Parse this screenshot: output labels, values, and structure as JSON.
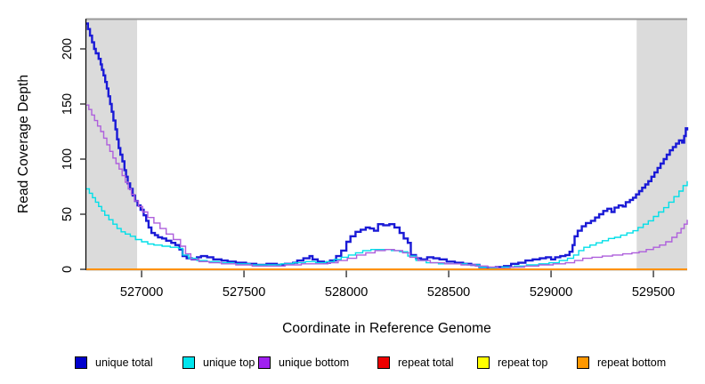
{
  "figure": {
    "background": "#ffffff",
    "frame_top_line_color": "#9a9a9a",
    "axis_color": "#000000",
    "tick_color": "#333333",
    "highlight_color": "#dbdbdb"
  },
  "chart_data": {
    "type": "line",
    "title": "",
    "xlabel": "Coordinate in Reference Genome",
    "ylabel": "Read Coverage Depth",
    "xlim": [
      526730,
      529665
    ],
    "ylim": [
      0,
      227
    ],
    "x_ticks": [
      527000,
      527500,
      528000,
      528500,
      529000,
      529500
    ],
    "y_ticks": [
      0,
      50,
      100,
      150,
      200
    ],
    "grid": false,
    "legend_position": "bottom",
    "highlight_regions": [
      {
        "name": "left-flank-repeat-region",
        "x0": 526730,
        "x1": 526978
      },
      {
        "name": "right-flank-repeat-region",
        "x0": 529418,
        "x1": 529665
      }
    ],
    "series": [
      {
        "name": "unique total",
        "color": "#1a1ad6",
        "swatch": "#0000cc",
        "width": 2.4,
        "points": [
          [
            526730,
            223
          ],
          [
            526738,
            218
          ],
          [
            526748,
            212
          ],
          [
            526758,
            206
          ],
          [
            526768,
            200
          ],
          [
            526776,
            196
          ],
          [
            526790,
            191
          ],
          [
            526800,
            186
          ],
          [
            526806,
            181
          ],
          [
            526814,
            176
          ],
          [
            526822,
            170
          ],
          [
            526830,
            164
          ],
          [
            526838,
            157
          ],
          [
            526846,
            150
          ],
          [
            526854,
            143
          ],
          [
            526862,
            135
          ],
          [
            526872,
            127
          ],
          [
            526880,
            118
          ],
          [
            526888,
            110
          ],
          [
            526896,
            104
          ],
          [
            526906,
            98
          ],
          [
            526916,
            90
          ],
          [
            526924,
            84
          ],
          [
            526932,
            78
          ],
          [
            526944,
            73
          ],
          [
            526956,
            67
          ],
          [
            526968,
            62
          ],
          [
            526980,
            58
          ],
          [
            526995,
            54
          ],
          [
            527010,
            49
          ],
          [
            527022,
            44
          ],
          [
            527034,
            38
          ],
          [
            527048,
            33
          ],
          [
            527065,
            31
          ],
          [
            527080,
            29
          ],
          [
            527100,
            28
          ],
          [
            527120,
            26
          ],
          [
            527145,
            24
          ],
          [
            527165,
            22
          ],
          [
            527185,
            18
          ],
          [
            527200,
            12
          ],
          [
            527220,
            10
          ],
          [
            527245,
            9
          ],
          [
            527270,
            11
          ],
          [
            527290,
            12
          ],
          [
            527320,
            11
          ],
          [
            527350,
            9
          ],
          [
            527390,
            8
          ],
          [
            527420,
            7
          ],
          [
            527460,
            6
          ],
          [
            527510,
            5
          ],
          [
            527560,
            4
          ],
          [
            527610,
            5
          ],
          [
            527660,
            4
          ],
          [
            527700,
            5
          ],
          [
            527740,
            6
          ],
          [
            527760,
            8
          ],
          [
            527790,
            10
          ],
          [
            527820,
            12
          ],
          [
            527835,
            9
          ],
          [
            527860,
            7
          ],
          [
            527890,
            6
          ],
          [
            527920,
            8
          ],
          [
            527950,
            12
          ],
          [
            527975,
            17
          ],
          [
            528000,
            25
          ],
          [
            528020,
            30
          ],
          [
            528045,
            34
          ],
          [
            528070,
            36
          ],
          [
            528095,
            38
          ],
          [
            528115,
            37
          ],
          [
            528135,
            35
          ],
          [
            528155,
            41
          ],
          [
            528180,
            40
          ],
          [
            528210,
            41
          ],
          [
            528235,
            38
          ],
          [
            528260,
            33
          ],
          [
            528280,
            28
          ],
          [
            528300,
            24
          ],
          [
            528315,
            13
          ],
          [
            528340,
            10
          ],
          [
            528365,
            9
          ],
          [
            528395,
            11
          ],
          [
            528425,
            10
          ],
          [
            528455,
            9
          ],
          [
            528490,
            7
          ],
          [
            528530,
            6
          ],
          [
            528570,
            5
          ],
          [
            528610,
            4
          ],
          [
            528650,
            2
          ],
          [
            528690,
            1
          ],
          [
            528730,
            2
          ],
          [
            528770,
            3
          ],
          [
            528805,
            5
          ],
          [
            528840,
            6
          ],
          [
            528875,
            8
          ],
          [
            528910,
            9
          ],
          [
            528945,
            10
          ],
          [
            528975,
            11
          ],
          [
            529000,
            9
          ],
          [
            529020,
            11
          ],
          [
            529045,
            12
          ],
          [
            529070,
            13
          ],
          [
            529090,
            16
          ],
          [
            529105,
            22
          ],
          [
            529115,
            30
          ],
          [
            529130,
            35
          ],
          [
            529150,
            39
          ],
          [
            529170,
            42
          ],
          [
            529195,
            44
          ],
          [
            529215,
            47
          ],
          [
            529235,
            50
          ],
          [
            529255,
            53
          ],
          [
            529275,
            55
          ],
          [
            529295,
            52
          ],
          [
            529310,
            56
          ],
          [
            529330,
            58
          ],
          [
            529350,
            57
          ],
          [
            529365,
            61
          ],
          [
            529385,
            63
          ],
          [
            529400,
            65
          ],
          [
            529415,
            68
          ],
          [
            529430,
            71
          ],
          [
            529445,
            74
          ],
          [
            529460,
            77
          ],
          [
            529475,
            80
          ],
          [
            529490,
            84
          ],
          [
            529505,
            88
          ],
          [
            529520,
            92
          ],
          [
            529535,
            96
          ],
          [
            529550,
            100
          ],
          [
            529565,
            104
          ],
          [
            529580,
            108
          ],
          [
            529595,
            111
          ],
          [
            529610,
            114
          ],
          [
            529625,
            117
          ],
          [
            529640,
            115
          ],
          [
            529650,
            121
          ],
          [
            529658,
            128
          ],
          [
            529665,
            126
          ]
        ]
      },
      {
        "name": "unique top",
        "color": "#00dfe8",
        "swatch": "#00e5ee",
        "width": 1.4,
        "points": [
          [
            526730,
            73
          ],
          [
            526745,
            69
          ],
          [
            526760,
            65
          ],
          [
            526775,
            61
          ],
          [
            526790,
            57
          ],
          [
            526805,
            53
          ],
          [
            526820,
            49
          ],
          [
            526840,
            45
          ],
          [
            526860,
            41
          ],
          [
            526880,
            37
          ],
          [
            526900,
            34
          ],
          [
            526920,
            32
          ],
          [
            526945,
            30
          ],
          [
            526970,
            27
          ],
          [
            527000,
            25
          ],
          [
            527030,
            23
          ],
          [
            527060,
            22
          ],
          [
            527100,
            21
          ],
          [
            527140,
            20
          ],
          [
            527180,
            19
          ],
          [
            527200,
            13
          ],
          [
            527230,
            10
          ],
          [
            527270,
            8
          ],
          [
            527320,
            7
          ],
          [
            527380,
            6
          ],
          [
            527450,
            5
          ],
          [
            527530,
            4
          ],
          [
            527610,
            4
          ],
          [
            527680,
            5
          ],
          [
            527740,
            6
          ],
          [
            527800,
            7
          ],
          [
            527850,
            6
          ],
          [
            527900,
            7
          ],
          [
            527940,
            9
          ],
          [
            527975,
            11
          ],
          [
            528010,
            13
          ],
          [
            528045,
            15
          ],
          [
            528080,
            17
          ],
          [
            528120,
            18
          ],
          [
            528170,
            18
          ],
          [
            528220,
            17
          ],
          [
            528260,
            16
          ],
          [
            528300,
            12
          ],
          [
            528340,
            8
          ],
          [
            528390,
            6
          ],
          [
            528450,
            5
          ],
          [
            528520,
            5
          ],
          [
            528590,
            4
          ],
          [
            528650,
            2
          ],
          [
            528700,
            1
          ],
          [
            528760,
            2
          ],
          [
            528820,
            3
          ],
          [
            528880,
            4
          ],
          [
            528940,
            5
          ],
          [
            528990,
            6
          ],
          [
            529040,
            8
          ],
          [
            529080,
            10
          ],
          [
            529110,
            13
          ],
          [
            529135,
            17
          ],
          [
            529160,
            20
          ],
          [
            529190,
            22
          ],
          [
            529220,
            24
          ],
          [
            529250,
            26
          ],
          [
            529280,
            28
          ],
          [
            529310,
            29
          ],
          [
            529340,
            31
          ],
          [
            529370,
            33
          ],
          [
            529400,
            35
          ],
          [
            529425,
            38
          ],
          [
            529450,
            41
          ],
          [
            529475,
            44
          ],
          [
            529500,
            48
          ],
          [
            529525,
            52
          ],
          [
            529550,
            56
          ],
          [
            529575,
            61
          ],
          [
            529600,
            66
          ],
          [
            529625,
            71
          ],
          [
            529645,
            76
          ],
          [
            529665,
            80
          ]
        ]
      },
      {
        "name": "unique bottom",
        "color": "#ae5fdc",
        "swatch": "#a020f0",
        "width": 1.4,
        "points": [
          [
            526730,
            149
          ],
          [
            526742,
            145
          ],
          [
            526756,
            140
          ],
          [
            526770,
            135
          ],
          [
            526785,
            130
          ],
          [
            526800,
            125
          ],
          [
            526815,
            119
          ],
          [
            526830,
            113
          ],
          [
            526845,
            107
          ],
          [
            526860,
            101
          ],
          [
            526875,
            96
          ],
          [
            526890,
            91
          ],
          [
            526905,
            85
          ],
          [
            526920,
            79
          ],
          [
            526935,
            73
          ],
          [
            526950,
            68
          ],
          [
            526965,
            62
          ],
          [
            526985,
            57
          ],
          [
            527005,
            52
          ],
          [
            527030,
            47
          ],
          [
            527060,
            42
          ],
          [
            527090,
            37
          ],
          [
            527120,
            32
          ],
          [
            527155,
            27
          ],
          [
            527190,
            21
          ],
          [
            527215,
            14
          ],
          [
            527240,
            9
          ],
          [
            527280,
            7
          ],
          [
            527330,
            6
          ],
          [
            527390,
            5
          ],
          [
            527460,
            4
          ],
          [
            527540,
            3
          ],
          [
            527620,
            3
          ],
          [
            527700,
            4
          ],
          [
            527780,
            5
          ],
          [
            527850,
            5
          ],
          [
            527910,
            6
          ],
          [
            527960,
            8
          ],
          [
            528005,
            10
          ],
          [
            528050,
            13
          ],
          [
            528095,
            15
          ],
          [
            528140,
            17
          ],
          [
            528190,
            18
          ],
          [
            528235,
            17
          ],
          [
            528275,
            15
          ],
          [
            528310,
            11
          ],
          [
            528350,
            8
          ],
          [
            528410,
            6
          ],
          [
            528480,
            5
          ],
          [
            528560,
            4
          ],
          [
            528630,
            3
          ],
          [
            528690,
            2
          ],
          [
            528740,
            1
          ],
          [
            528800,
            2
          ],
          [
            528870,
            3
          ],
          [
            528940,
            4
          ],
          [
            529010,
            5
          ],
          [
            529070,
            6
          ],
          [
            529115,
            8
          ],
          [
            529155,
            10
          ],
          [
            529200,
            11
          ],
          [
            529250,
            12
          ],
          [
            529300,
            13
          ],
          [
            529350,
            14
          ],
          [
            529395,
            15
          ],
          [
            529430,
            16
          ],
          [
            529465,
            18
          ],
          [
            529500,
            20
          ],
          [
            529530,
            22
          ],
          [
            529560,
            25
          ],
          [
            529590,
            29
          ],
          [
            529615,
            33
          ],
          [
            529635,
            37
          ],
          [
            529650,
            41
          ],
          [
            529665,
            45
          ]
        ]
      },
      {
        "name": "repeat total",
        "color": "#e60000",
        "swatch": "#ee0000",
        "width": 1.6,
        "points": [
          [
            526730,
            0
          ],
          [
            529665,
            0
          ]
        ]
      },
      {
        "name": "repeat top",
        "color": "#ffff00",
        "swatch": "#ffff00",
        "width": 1.6,
        "points": [
          [
            526730,
            0
          ],
          [
            529665,
            0
          ]
        ]
      },
      {
        "name": "repeat bottom",
        "color": "#ff9100",
        "swatch": "#ff9800",
        "width": 2.0,
        "points": [
          [
            526730,
            0
          ],
          [
            529665,
            0
          ]
        ]
      }
    ]
  }
}
